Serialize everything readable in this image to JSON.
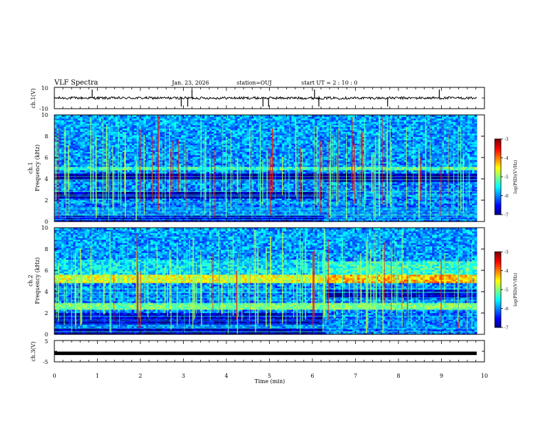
{
  "header": {
    "title": "VLF Spectra",
    "date": "Jan. 23, 2026",
    "station": "station=OUJ",
    "start": "start UT =  2 : 10 : 0"
  },
  "chart_data": [
    {
      "type": "line",
      "panel": "ch1-waveform",
      "ylabel": "ch.1(V)",
      "ylim": [
        -10,
        10
      ],
      "yticks": [
        "10",
        "-10"
      ],
      "baseline": 0,
      "spikes_min": [
        0.88,
        2.95,
        3.1,
        3.2,
        4.85,
        4.98,
        6.05,
        6.15,
        7.75,
        8.95
      ]
    },
    {
      "type": "heatmap",
      "panel": "ch1-spectrogram",
      "ylabel": "ch.1",
      "ylabel2": "Frequency (kHz)",
      "ylim": [
        0,
        10
      ],
      "yticks": [
        "0",
        "2",
        "4",
        "6",
        "8",
        "10"
      ],
      "colorbar": {
        "label": "log(PSD)(V²/Hz)",
        "range": [
          -7,
          -3
        ],
        "ticks": [
          "-3",
          "-4",
          "-5",
          "-6",
          "-7"
        ]
      },
      "regime_change_min": 6.25,
      "bands_before": [
        {
          "f": [
            4.85,
            5.2
          ],
          "level": -5.3
        },
        {
          "f": [
            3.9,
            4.6
          ],
          "level": -6.9
        },
        {
          "f": [
            2.2,
            2.8
          ],
          "level": -6.8
        },
        {
          "f": [
            0,
            0.6
          ],
          "level": -6.6
        }
      ],
      "bands_after": [
        {
          "f": [
            4.9,
            5.2
          ],
          "level": -5.2
        },
        {
          "f": [
            3.7,
            4.6
          ],
          "level": -6.9
        },
        {
          "f": [
            1.9,
            2.9
          ],
          "level": -6.0
        }
      ]
    },
    {
      "type": "heatmap",
      "panel": "ch2-spectrogram",
      "ylabel": "ch.2",
      "ylabel2": "Frequency (kHz)",
      "ylim": [
        0,
        10
      ],
      "yticks": [
        "0",
        "2",
        "4",
        "6",
        "8",
        "10"
      ],
      "colorbar": {
        "label": "log(PSD)(V²/Hz)",
        "range": [
          -7,
          -3
        ],
        "ticks": [
          "-3",
          "-4",
          "-5",
          "-6",
          "-7"
        ]
      },
      "regime_change_min": 6.25,
      "bands_before": [
        {
          "f": [
            4.8,
            5.6
          ],
          "level": -4.6
        },
        {
          "f": [
            2.4,
            3.0
          ],
          "level": -5.0
        },
        {
          "f": [
            5.6,
            7.0
          ],
          "level": -5.6
        },
        {
          "f": [
            1.0,
            2.0
          ],
          "level": -6.7
        },
        {
          "f": [
            0,
            0.6
          ],
          "level": -6.8
        }
      ],
      "bands_after": [
        {
          "f": [
            4.8,
            5.6
          ],
          "level": -4.2
        },
        {
          "f": [
            2.3,
            2.9
          ],
          "level": -4.9
        },
        {
          "f": [
            5.6,
            6.8
          ],
          "level": -5.3
        },
        {
          "f": [
            3.4,
            4.2
          ],
          "level": -6.7
        }
      ]
    },
    {
      "type": "line",
      "panel": "ch3-waveform",
      "ylabel": "ch.3(V)",
      "ylim": [
        -5,
        5
      ],
      "yticks": [
        "5",
        "0",
        "-5"
      ],
      "value": -1
    }
  ],
  "xaxis": {
    "label": "Time (min)",
    "xlim": [
      0,
      10
    ],
    "ticks": [
      "0",
      "1",
      "2",
      "3",
      "4",
      "5",
      "6",
      "7",
      "8",
      "9",
      "10"
    ],
    "data_end_min": 9.82
  }
}
